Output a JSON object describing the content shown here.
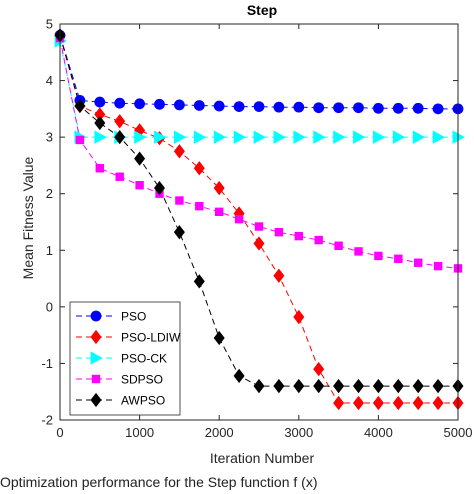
{
  "chart_data": {
    "type": "line",
    "title": "Step",
    "xlabel": "Iteration Number",
    "ylabel": "Mean Fitness Value",
    "xlim": [
      0,
      5000
    ],
    "ylim": [
      -2,
      5
    ],
    "xticks": [
      0,
      1000,
      2000,
      3000,
      4000,
      5000
    ],
    "xtick_labels": [
      "0",
      "1000",
      "2000",
      "3000",
      "4000",
      "5000"
    ],
    "yticks": [
      -2,
      -1,
      0,
      1,
      2,
      3,
      4,
      5
    ],
    "yticks_labels": [
      "-2",
      "-1",
      "0",
      "1",
      "2",
      "3",
      "4",
      "5"
    ],
    "grid": false,
    "legend_position": "bottom-left",
    "x": [
      0,
      250,
      500,
      750,
      1000,
      1250,
      1500,
      1750,
      2000,
      2250,
      2500,
      2750,
      3000,
      3250,
      3500,
      3750,
      4000,
      4250,
      4500,
      4750,
      5000
    ],
    "series": [
      {
        "name": "PSO",
        "color": "#0000ff",
        "marker": "circle",
        "values": [
          4.8,
          3.65,
          3.62,
          3.6,
          3.59,
          3.58,
          3.57,
          3.56,
          3.55,
          3.54,
          3.54,
          3.53,
          3.53,
          3.52,
          3.52,
          3.52,
          3.51,
          3.51,
          3.51,
          3.5,
          3.5
        ]
      },
      {
        "name": "PSO-LDIW",
        "color": "#ff0000",
        "marker": "diamond",
        "values": [
          4.8,
          3.55,
          3.4,
          3.28,
          3.12,
          2.98,
          2.75,
          2.45,
          2.1,
          1.65,
          1.12,
          0.55,
          -0.18,
          -1.1,
          -1.7,
          -1.7,
          -1.7,
          -1.7,
          -1.7,
          -1.7,
          -1.7
        ]
      },
      {
        "name": "PSO-CK",
        "color": "#00ffff",
        "marker": "triangle-right",
        "values": [
          4.7,
          3.0,
          3.0,
          3.0,
          3.0,
          3.0,
          3.0,
          3.0,
          3.0,
          3.0,
          3.0,
          3.0,
          3.0,
          3.0,
          3.0,
          3.0,
          3.0,
          3.0,
          3.0,
          3.0,
          3.0
        ]
      },
      {
        "name": "SDPSO",
        "color": "#ff00ff",
        "marker": "square",
        "values": [
          4.75,
          2.95,
          2.45,
          2.3,
          2.15,
          2.0,
          1.88,
          1.78,
          1.68,
          1.55,
          1.42,
          1.32,
          1.25,
          1.18,
          1.08,
          0.98,
          0.9,
          0.85,
          0.78,
          0.72,
          0.68
        ]
      },
      {
        "name": "AWPSO",
        "color": "#000000",
        "marker": "diamond",
        "values": [
          4.8,
          3.55,
          3.25,
          3.0,
          2.62,
          2.1,
          1.32,
          0.45,
          -0.55,
          -1.22,
          -1.4,
          -1.4,
          -1.4,
          -1.4,
          -1.4,
          -1.4,
          -1.4,
          -1.4,
          -1.4,
          -1.4,
          -1.4
        ]
      }
    ]
  },
  "caption": "Optimization performance for the Step function f (x)"
}
